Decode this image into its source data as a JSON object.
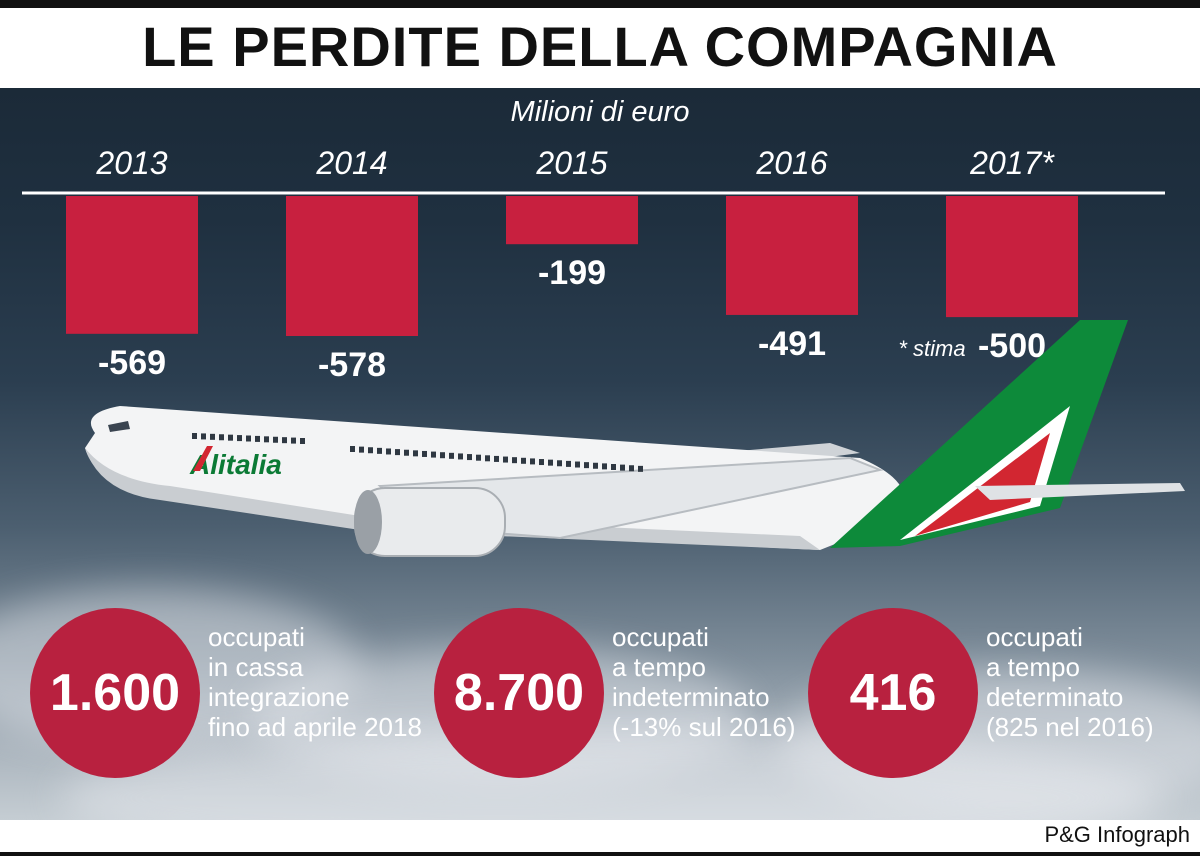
{
  "header": {
    "title": "LE PERDITE DELLA COMPAGNIA"
  },
  "chart_data": {
    "type": "bar",
    "title": "LE PERDITE DELLA COMPAGNIA",
    "ylabel": "Milioni di euro",
    "categories": [
      "2013",
      "2014",
      "2015",
      "2016",
      "2017*"
    ],
    "values": [
      -569,
      -578,
      -199,
      -491,
      -500
    ],
    "labels": [
      "-569",
      "-578",
      "-199",
      "-491",
      "-500"
    ],
    "bar_color": "#c8203f",
    "note": "* stima",
    "ylim": [
      -600,
      0
    ],
    "orientation": "hanging from top baseline"
  },
  "airplane": {
    "brand": "Alitalia"
  },
  "stats": [
    {
      "value": "1.600",
      "lines": [
        "occupati",
        "in cassa",
        "integrazione",
        "fino ad aprile 2018"
      ]
    },
    {
      "value": "8.700",
      "lines": [
        "occupati",
        "a tempo",
        "indeterminato",
        "(-13% sul 2016)"
      ]
    },
    {
      "value": "416",
      "lines": [
        "occupati",
        "a tempo",
        "determinato",
        "(825 nel 2016)"
      ]
    }
  ],
  "footer": {
    "credit": "P&G Infograph"
  },
  "colors": {
    "accent": "#b8213f",
    "sky_top": "#1b2a38",
    "sky_bottom": "#c5cdd3"
  }
}
